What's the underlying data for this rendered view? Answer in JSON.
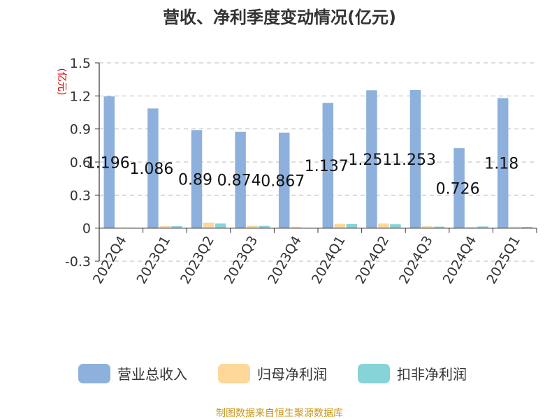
{
  "chart_data": {
    "type": "bar",
    "title": "营收、净利季度变动情况(亿元)",
    "ylabel": "(亿元)",
    "categories": [
      "2022Q4",
      "2023Q1",
      "2023Q2",
      "2023Q3",
      "2023Q4",
      "2024Q1",
      "2024Q2",
      "2024Q3",
      "2024Q4",
      "2025Q1"
    ],
    "series": [
      {
        "name": "营业总收入",
        "color": "#8eb0dc",
        "values": [
          1.196,
          1.086,
          0.89,
          0.874,
          0.867,
          1.137,
          1.251,
          1.253,
          0.726,
          1.18
        ],
        "labels": [
          "1.196",
          "1.086",
          "0.89",
          "0.874",
          "0.867",
          "1.137",
          "1.251",
          "1.253",
          "0.726",
          "1.18"
        ]
      },
      {
        "name": "归母净利润",
        "color": "#fdd89a",
        "values": [
          0.006,
          0.018,
          0.05,
          0.022,
          0.012,
          0.038,
          0.042,
          0.016,
          0.01,
          0.012
        ]
      },
      {
        "name": "扣非净利润",
        "color": "#86d4d8",
        "values": [
          0.005,
          0.017,
          0.042,
          0.02,
          0.004,
          0.036,
          0.035,
          0.013,
          0.015,
          0.011
        ]
      }
    ],
    "yticks": [
      "-0.3",
      "0",
      "0.3",
      "0.6",
      "0.9",
      "1.2",
      "1.5"
    ],
    "ylim": [
      -0.3,
      1.5
    ],
    "grid": true,
    "legend_position": "bottom"
  },
  "source": "制图数据来自恒生聚源数据库"
}
